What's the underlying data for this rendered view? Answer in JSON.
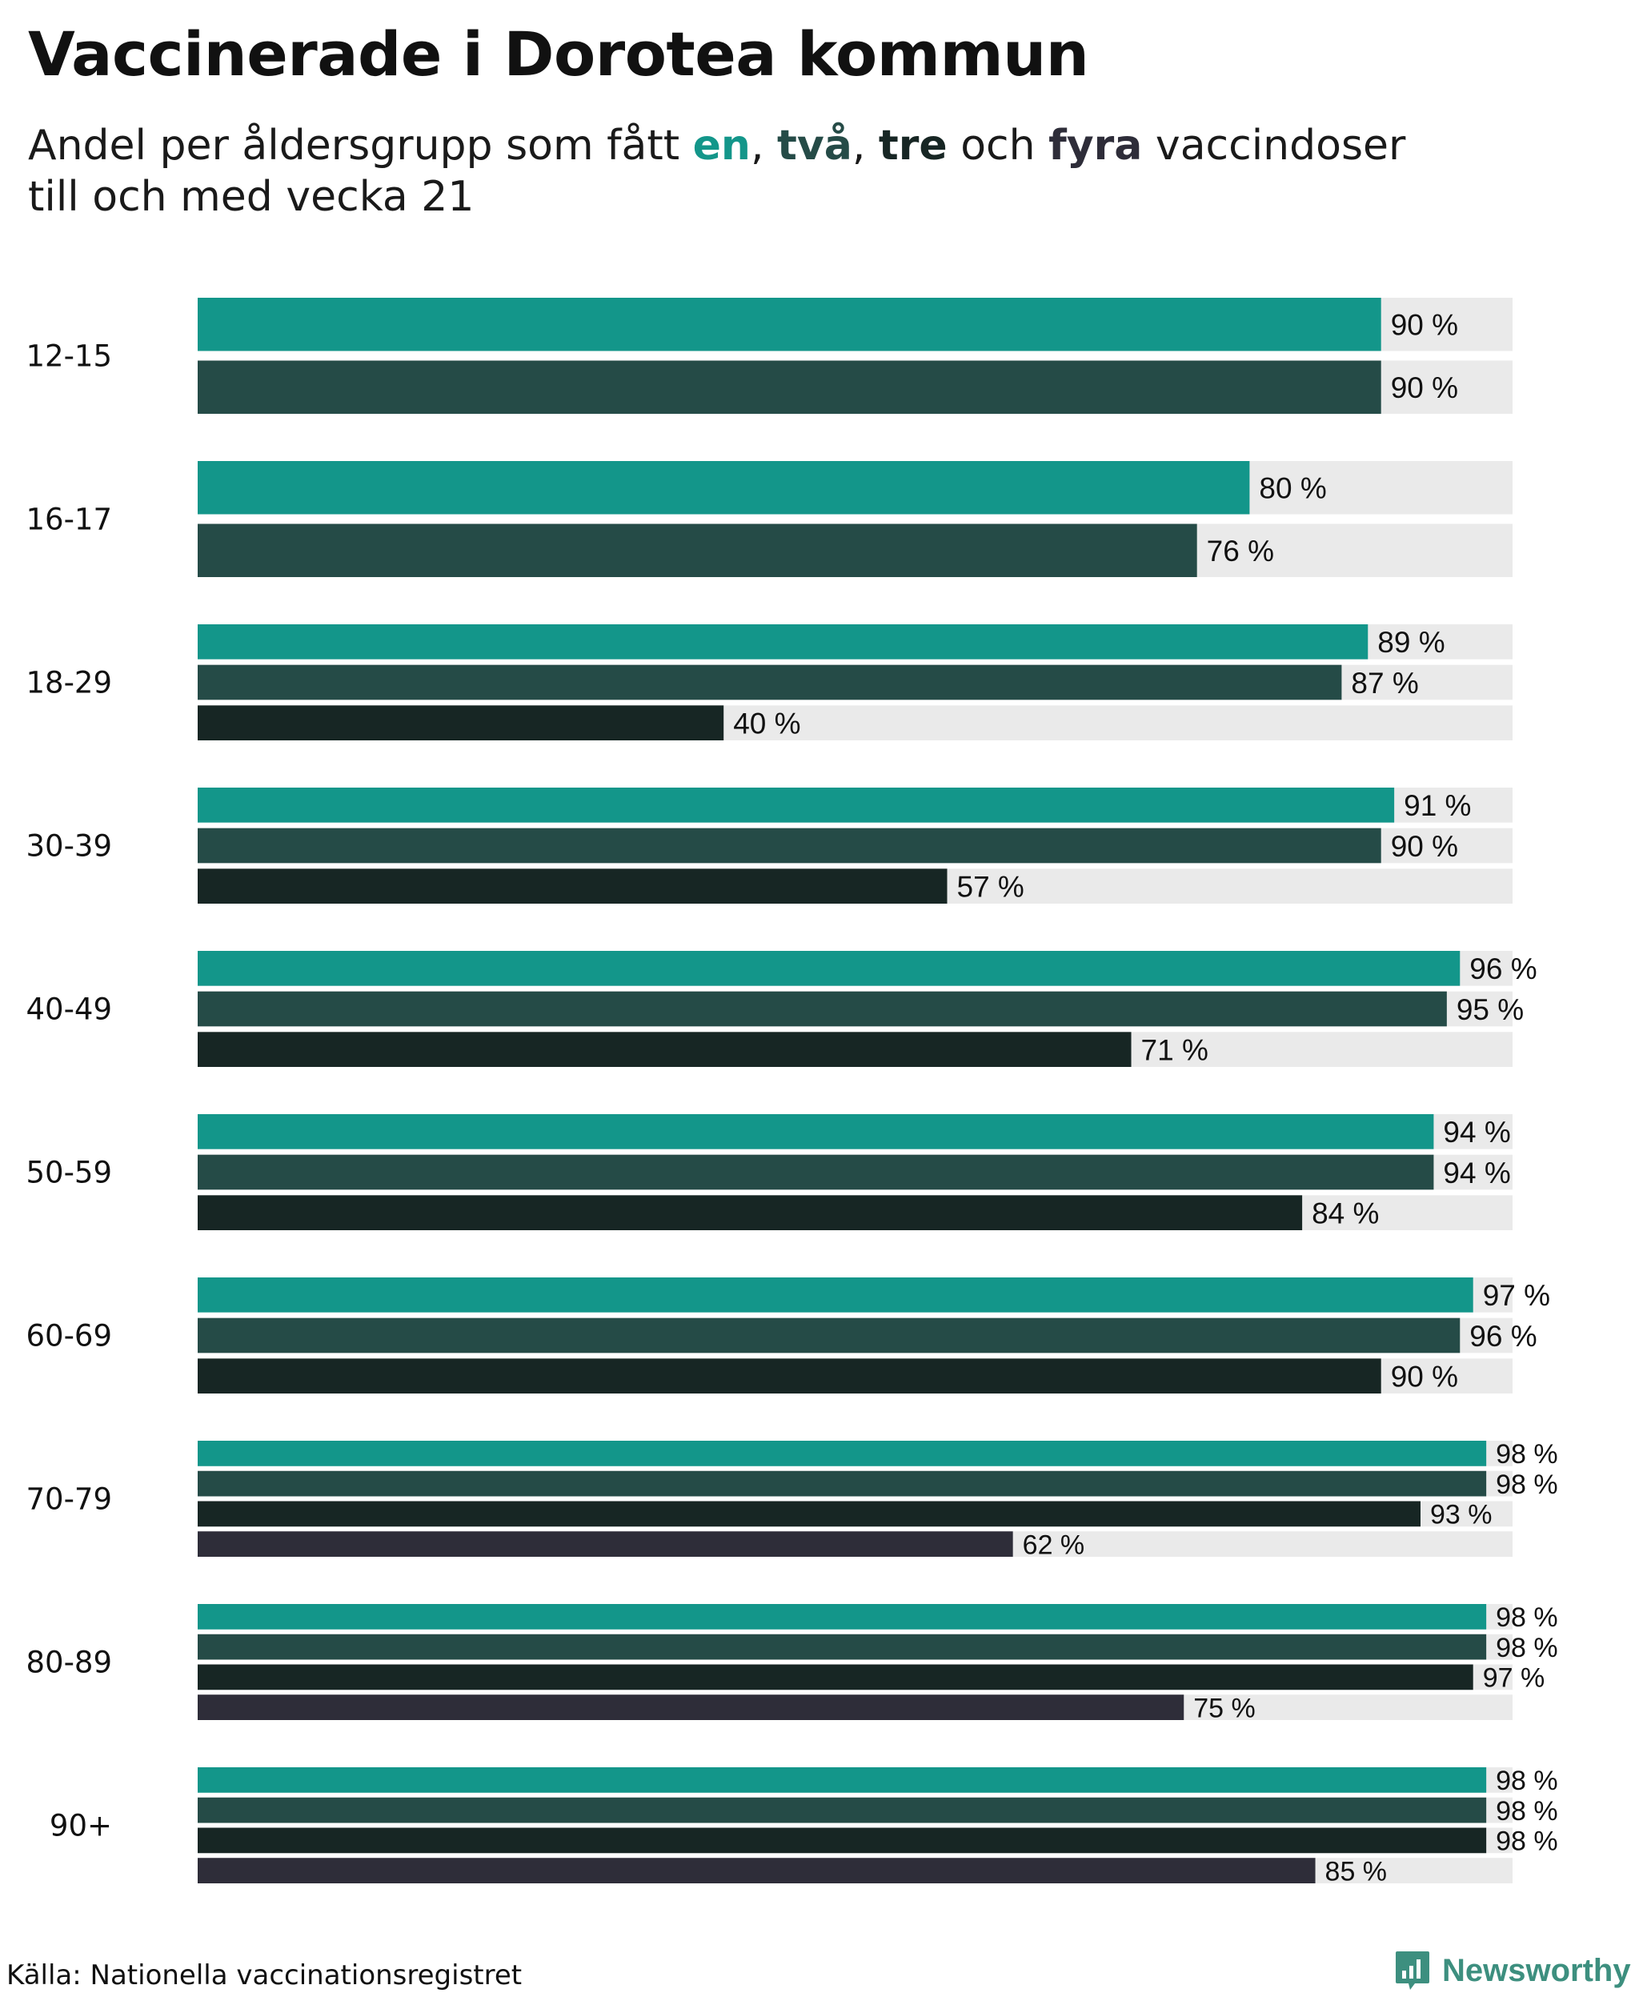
{
  "title": "Vaccinerade i Dorotea kommun",
  "subtitle": {
    "prefix": "Andel per åldersgrupp som fått ",
    "dose1": "en",
    "sep1": ", ",
    "dose2": "två",
    "sep2": ", ",
    "dose3": "tre",
    "mid": " och ",
    "dose4": "fyra",
    "suffix": " vaccindoser",
    "line2": "till och med vecka 21"
  },
  "colors": {
    "dose1": "#13968a",
    "dose2": "#254b47",
    "dose3": "#172624",
    "dose4": "#2e2d39",
    "track": "#eaeaea"
  },
  "chart_data": {
    "type": "bar",
    "orientation": "horizontal",
    "xlim": [
      0,
      100
    ],
    "unit": " %",
    "categories": [
      "12-15",
      "16-17",
      "18-29",
      "30-39",
      "40-49",
      "50-59",
      "60-69",
      "70-79",
      "80-89",
      "90+"
    ],
    "series": [
      {
        "name": "en",
        "values": [
          90,
          80,
          89,
          91,
          96,
          94,
          97,
          98,
          98,
          98
        ]
      },
      {
        "name": "två",
        "values": [
          90,
          76,
          87,
          90,
          95,
          94,
          96,
          98,
          98,
          98
        ]
      },
      {
        "name": "tre",
        "values": [
          null,
          null,
          40,
          57,
          71,
          84,
          90,
          93,
          97,
          98
        ]
      },
      {
        "name": "fyra",
        "values": [
          null,
          null,
          null,
          null,
          null,
          null,
          null,
          62,
          75,
          85
        ]
      }
    ]
  },
  "footer": {
    "source": "Källa: Nationella vaccinationsregistret",
    "brand": "Newsworthy"
  }
}
